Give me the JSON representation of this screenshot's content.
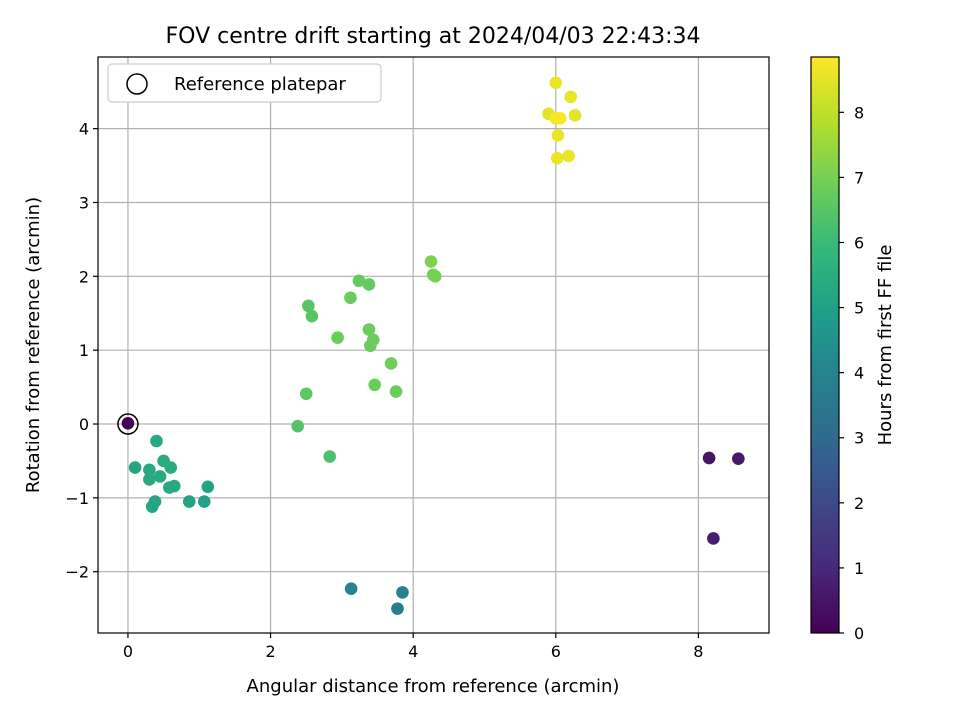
{
  "chart_data": {
    "type": "scatter",
    "title": "FOV centre drift starting at 2024/04/03 22:43:34",
    "xlabel": "Angular distance from reference (arcmin)",
    "ylabel": "Rotation from reference (arcmin)",
    "xlim": [
      -0.42,
      8.99
    ],
    "ylim": [
      -2.83,
      4.97
    ],
    "xticks": [
      0,
      2,
      4,
      6,
      8
    ],
    "yticks": [
      -2,
      -1,
      0,
      1,
      2,
      3,
      4
    ],
    "grid": true,
    "legend": {
      "placement": "upper-left",
      "entries": [
        "Reference platepar"
      ]
    },
    "reference_point": {
      "x": 0.0,
      "y": 0.0
    },
    "colorbar": {
      "label": "Hours from first FF file",
      "colormap": "viridis",
      "range": [
        0,
        8.85
      ],
      "ticks": [
        0,
        1,
        2,
        3,
        4,
        5,
        6,
        7,
        8
      ]
    },
    "colormap_stops": [
      "#440154",
      "#482878",
      "#3e4989",
      "#31688e",
      "#26828e",
      "#1f9e89",
      "#35b779",
      "#6ece58",
      "#b5de2b",
      "#fde725"
    ],
    "points": [
      {
        "x": 0.0,
        "y": 0.01,
        "c": 0.0
      },
      {
        "x": 8.15,
        "y": -0.46,
        "c": 0.5
      },
      {
        "x": 8.56,
        "y": -0.47,
        "c": 0.6
      },
      {
        "x": 8.21,
        "y": -1.55,
        "c": 0.7
      },
      {
        "x": 3.13,
        "y": -2.23,
        "c": 4.0
      },
      {
        "x": 3.85,
        "y": -2.28,
        "c": 3.9
      },
      {
        "x": 3.78,
        "y": -2.5,
        "c": 3.8
      },
      {
        "x": 0.4,
        "y": -0.23,
        "c": 5.3
      },
      {
        "x": 0.1,
        "y": -0.59,
        "c": 5.2
      },
      {
        "x": 0.3,
        "y": -0.62,
        "c": 5.3
      },
      {
        "x": 0.3,
        "y": -0.75,
        "c": 5.3
      },
      {
        "x": 0.5,
        "y": -0.5,
        "c": 5.4
      },
      {
        "x": 0.6,
        "y": -0.59,
        "c": 5.4
      },
      {
        "x": 0.45,
        "y": -0.71,
        "c": 5.4
      },
      {
        "x": 0.65,
        "y": -0.84,
        "c": 5.4
      },
      {
        "x": 0.58,
        "y": -0.86,
        "c": 5.3
      },
      {
        "x": 1.12,
        "y": -0.85,
        "c": 5.1
      },
      {
        "x": 0.38,
        "y": -1.05,
        "c": 5.2
      },
      {
        "x": 0.34,
        "y": -1.12,
        "c": 5.2
      },
      {
        "x": 0.86,
        "y": -1.05,
        "c": 5.1
      },
      {
        "x": 1.07,
        "y": -1.05,
        "c": 5.1
      },
      {
        "x": 2.53,
        "y": 1.6,
        "c": 6.5
      },
      {
        "x": 2.58,
        "y": 1.46,
        "c": 6.5
      },
      {
        "x": 3.24,
        "y": 1.94,
        "c": 6.7
      },
      {
        "x": 3.38,
        "y": 1.89,
        "c": 6.7
      },
      {
        "x": 3.12,
        "y": 1.71,
        "c": 6.8
      },
      {
        "x": 4.25,
        "y": 2.2,
        "c": 7.1
      },
      {
        "x": 4.28,
        "y": 2.02,
        "c": 7.0
      },
      {
        "x": 4.31,
        "y": 2.0,
        "c": 7.0
      },
      {
        "x": 2.94,
        "y": 1.17,
        "c": 6.8
      },
      {
        "x": 3.38,
        "y": 1.28,
        "c": 6.8
      },
      {
        "x": 3.44,
        "y": 1.14,
        "c": 6.8
      },
      {
        "x": 3.4,
        "y": 1.06,
        "c": 6.8
      },
      {
        "x": 3.69,
        "y": 0.82,
        "c": 6.9
      },
      {
        "x": 3.46,
        "y": 0.53,
        "c": 6.8
      },
      {
        "x": 3.76,
        "y": 0.44,
        "c": 6.8
      },
      {
        "x": 2.5,
        "y": 0.41,
        "c": 6.6
      },
      {
        "x": 2.38,
        "y": -0.03,
        "c": 6.4
      },
      {
        "x": 2.83,
        "y": -0.44,
        "c": 6.3
      },
      {
        "x": 6.0,
        "y": 4.62,
        "c": 8.6
      },
      {
        "x": 6.21,
        "y": 4.43,
        "c": 8.6
      },
      {
        "x": 5.9,
        "y": 4.2,
        "c": 8.5
      },
      {
        "x": 6.27,
        "y": 4.18,
        "c": 8.5
      },
      {
        "x": 6.0,
        "y": 4.14,
        "c": 8.8
      },
      {
        "x": 6.06,
        "y": 4.14,
        "c": 8.8
      },
      {
        "x": 6.03,
        "y": 3.91,
        "c": 8.6
      },
      {
        "x": 6.02,
        "y": 3.6,
        "c": 8.6
      },
      {
        "x": 6.18,
        "y": 3.63,
        "c": 8.6
      }
    ]
  }
}
